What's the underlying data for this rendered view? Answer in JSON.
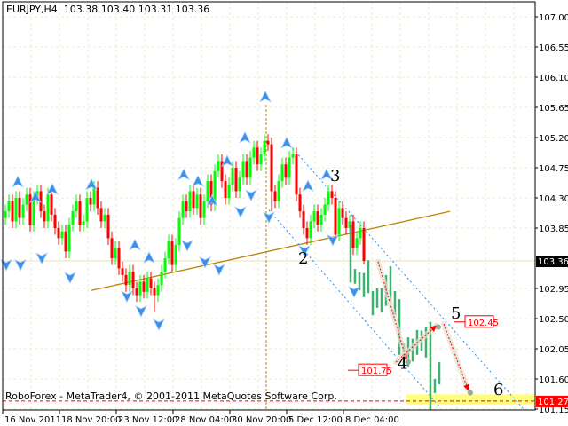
{
  "header": {
    "symbol": "EURJPY,H4",
    "open": "103.38",
    "high": "103.40",
    "low": "103.31",
    "close": "103.36"
  },
  "footer": {
    "copyright": "RoboForex - MetaTrader4, © 2001-2011 MetaQuotes Software Corp."
  },
  "colors": {
    "bull": "#00ff00",
    "bear": "#ff0000",
    "projection": "#3cb371",
    "fractal": "#3d8fe8",
    "trendline": "#b8860b",
    "channel": "#1e90ff",
    "target_zone": "#ffff66",
    "label_red": "#ff0000"
  },
  "chart_data": {
    "type": "candlestick",
    "title": "EURJPY,H4",
    "ylim": [
      101.15,
      107.0
    ],
    "grid": true,
    "y_ticks": [
      "107.00",
      "106.55",
      "106.10",
      "105.65",
      "105.20",
      "104.75",
      "104.30",
      "103.85",
      "102.95",
      "102.50",
      "102.05",
      "101.60",
      "101.15"
    ],
    "x_ticks": [
      {
        "bar": 0,
        "label": "16 Nov 2011"
      },
      {
        "bar": 16,
        "label": "18 Nov 20:00"
      },
      {
        "bar": 32,
        "label": "23 Nov 12:00"
      },
      {
        "bar": 48,
        "label": "28 Nov 04:00"
      },
      {
        "bar": 64,
        "label": "30 Nov 20:00"
      },
      {
        "bar": 80,
        "label": "5 Dec 12:00"
      },
      {
        "bar": 96,
        "label": "8 Dec 04:00"
      }
    ],
    "candles_ohlc": [
      [
        104.0,
        104.2,
        103.9,
        104.1
      ],
      [
        104.1,
        104.35,
        104.0,
        104.25
      ],
      [
        104.25,
        104.35,
        103.85,
        103.95
      ],
      [
        103.95,
        104.4,
        103.85,
        104.3
      ],
      [
        104.3,
        104.4,
        103.9,
        104.0
      ],
      [
        104.0,
        104.3,
        103.9,
        104.2
      ],
      [
        104.2,
        104.45,
        104.1,
        104.35
      ],
      [
        104.35,
        104.45,
        103.8,
        103.9
      ],
      [
        103.9,
        104.4,
        103.8,
        104.3
      ],
      [
        104.3,
        104.5,
        104.2,
        104.4
      ],
      [
        104.4,
        104.5,
        104.0,
        104.1
      ],
      [
        104.1,
        104.2,
        103.85,
        103.95
      ],
      [
        103.95,
        104.45,
        103.85,
        104.35
      ],
      [
        104.35,
        104.45,
        103.95,
        104.05
      ],
      [
        104.05,
        104.15,
        103.75,
        103.85
      ],
      [
        103.85,
        103.95,
        103.6,
        103.7
      ],
      [
        103.7,
        103.9,
        103.6,
        103.8
      ],
      [
        103.8,
        103.9,
        103.4,
        103.5
      ],
      [
        103.5,
        104.0,
        103.4,
        103.9
      ],
      [
        103.9,
        104.2,
        103.8,
        104.1
      ],
      [
        104.1,
        104.35,
        104.0,
        104.25
      ],
      [
        104.25,
        104.35,
        103.8,
        103.9
      ],
      [
        103.9,
        104.05,
        103.8,
        103.95
      ],
      [
        103.95,
        104.4,
        103.85,
        104.3
      ],
      [
        104.3,
        104.4,
        104.1,
        104.2
      ],
      [
        104.2,
        104.55,
        104.1,
        104.45
      ],
      [
        104.45,
        104.55,
        104.05,
        104.15
      ],
      [
        104.15,
        104.25,
        103.85,
        103.95
      ],
      [
        103.95,
        104.15,
        103.85,
        104.05
      ],
      [
        104.05,
        104.15,
        103.6,
        103.7
      ],
      [
        103.7,
        103.8,
        103.3,
        103.4
      ],
      [
        103.4,
        103.65,
        103.3,
        103.55
      ],
      [
        103.55,
        103.65,
        103.15,
        103.25
      ],
      [
        103.25,
        103.35,
        103.05,
        103.15
      ],
      [
        103.15,
        103.25,
        102.9,
        103.0
      ],
      [
        103.0,
        103.3,
        102.9,
        103.2
      ],
      [
        103.2,
        103.3,
        102.85,
        102.95
      ],
      [
        102.95,
        103.05,
        102.75,
        102.85
      ],
      [
        102.85,
        103.15,
        102.75,
        103.05
      ],
      [
        103.05,
        103.15,
        102.8,
        102.9
      ],
      [
        102.9,
        103.2,
        102.8,
        103.1
      ],
      [
        103.1,
        103.2,
        102.85,
        102.95
      ],
      [
        102.95,
        103.05,
        102.6,
        102.85
      ],
      [
        102.85,
        103.1,
        102.75,
        103.0
      ],
      [
        103.0,
        103.3,
        102.9,
        103.2
      ],
      [
        103.2,
        103.5,
        103.1,
        103.4
      ],
      [
        103.4,
        103.75,
        103.3,
        103.65
      ],
      [
        103.65,
        103.75,
        103.2,
        103.3
      ],
      [
        103.3,
        103.7,
        103.2,
        103.6
      ],
      [
        103.6,
        104.1,
        103.5,
        104.0
      ],
      [
        104.0,
        104.35,
        103.9,
        104.25
      ],
      [
        104.25,
        104.35,
        104.0,
        104.1
      ],
      [
        104.1,
        104.5,
        104.0,
        104.4
      ],
      [
        104.4,
        104.5,
        104.05,
        104.15
      ],
      [
        104.15,
        104.45,
        104.05,
        104.35
      ],
      [
        104.35,
        104.45,
        103.9,
        104.0
      ],
      [
        104.0,
        104.35,
        103.9,
        104.25
      ],
      [
        104.25,
        104.65,
        104.15,
        104.55
      ],
      [
        104.55,
        104.65,
        104.1,
        104.2
      ],
      [
        104.2,
        104.8,
        104.1,
        104.7
      ],
      [
        104.7,
        104.95,
        104.6,
        104.85
      ],
      [
        104.85,
        104.95,
        104.45,
        104.55
      ],
      [
        104.55,
        104.65,
        104.2,
        104.3
      ],
      [
        104.3,
        104.6,
        104.2,
        104.5
      ],
      [
        104.5,
        104.85,
        104.4,
        104.75
      ],
      [
        104.75,
        104.85,
        104.3,
        104.4
      ],
      [
        104.4,
        104.7,
        104.3,
        104.6
      ],
      [
        104.6,
        104.95,
        104.5,
        104.85
      ],
      [
        104.85,
        104.95,
        104.5,
        104.6
      ],
      [
        104.6,
        105.0,
        104.5,
        104.9
      ],
      [
        104.9,
        105.15,
        104.8,
        105.05
      ],
      [
        105.05,
        105.15,
        104.7,
        104.8
      ],
      [
        104.8,
        105.05,
        104.7,
        104.95
      ],
      [
        104.95,
        105.25,
        104.85,
        105.15
      ],
      [
        105.15,
        105.25,
        105.0,
        105.1
      ],
      [
        105.1,
        105.2,
        104.1,
        104.4
      ],
      [
        104.4,
        104.5,
        104.15,
        104.25
      ],
      [
        104.25,
        104.65,
        104.15,
        104.55
      ],
      [
        104.55,
        104.9,
        104.45,
        104.8
      ],
      [
        104.8,
        104.9,
        104.5,
        104.6
      ],
      [
        104.6,
        105.0,
        104.5,
        104.9
      ],
      [
        104.9,
        105.05,
        104.8,
        104.95
      ],
      [
        104.95,
        105.05,
        104.25,
        104.35
      ],
      [
        104.35,
        104.45,
        104.0,
        104.1
      ],
      [
        104.1,
        104.2,
        103.75,
        103.85
      ],
      [
        103.85,
        103.95,
        103.6,
        103.7
      ],
      [
        103.7,
        104.05,
        103.6,
        103.95
      ],
      [
        103.95,
        104.2,
        103.85,
        104.1
      ],
      [
        104.1,
        104.2,
        103.8,
        103.9
      ],
      [
        103.9,
        104.15,
        103.8,
        104.05
      ],
      [
        104.05,
        104.3,
        103.95,
        104.2
      ],
      [
        104.2,
        104.5,
        104.1,
        104.4
      ],
      [
        104.4,
        104.5,
        104.2,
        104.3
      ],
      [
        104.3,
        104.4,
        103.65,
        103.75
      ],
      [
        103.75,
        104.25,
        103.65,
        104.15
      ],
      [
        104.15,
        104.25,
        103.9,
        104.0
      ],
      [
        104.0,
        104.1,
        103.75,
        103.85
      ],
      [
        103.85,
        104.05,
        103.75,
        103.95
      ],
      [
        103.95,
        104.05,
        103.45,
        103.55
      ],
      [
        103.55,
        103.8,
        103.45,
        103.7
      ],
      [
        103.7,
        103.95,
        103.6,
        103.85
      ],
      [
        103.85,
        103.95,
        103.31,
        103.36
      ]
    ],
    "projection_bars_high_low": [
      [
        103.9,
        103.04
      ],
      [
        103.24,
        103.02
      ],
      [
        103.19,
        102.92
      ],
      [
        103.18,
        102.82
      ],
      [
        103.37,
        102.88
      ],
      [
        102.91,
        102.55
      ],
      [
        102.95,
        102.66
      ],
      [
        102.95,
        102.59
      ],
      [
        103.15,
        102.69
      ],
      [
        103.28,
        102.75
      ],
      [
        102.91,
        102.55
      ],
      [
        102.79,
        101.96
      ],
      [
        102.13,
        101.83
      ],
      [
        102.22,
        101.79
      ],
      [
        102.2,
        101.86
      ],
      [
        102.33,
        101.96
      ],
      [
        102.32,
        102.02
      ],
      [
        102.38,
        101.92
      ],
      [
        102.45,
        101.14
      ],
      [
        101.6,
        101.39
      ],
      [
        101.85,
        101.52
      ]
    ],
    "fractals_up": [
      [
        3.5,
        104.53
      ],
      [
        8.5,
        104.3
      ],
      [
        13.25,
        104.42
      ],
      [
        24.25,
        104.49
      ],
      [
        36.5,
        103.59
      ],
      [
        40.5,
        103.4
      ],
      [
        50.25,
        104.64
      ],
      [
        54.25,
        104.54
      ],
      [
        58.25,
        104.25
      ],
      [
        62.5,
        104.84
      ],
      [
        67.5,
        105.19
      ],
      [
        73.25,
        105.8
      ],
      [
        79.25,
        105.11
      ],
      [
        85.25,
        104.47
      ],
      [
        90.5,
        104.64
      ]
    ],
    "fractals_down": [
      [
        0.25,
        103.31
      ],
      [
        4.25,
        103.31
      ],
      [
        10.25,
        103.41
      ],
      [
        18.25,
        103.12
      ],
      [
        34.25,
        102.84
      ],
      [
        38.25,
        102.62
      ],
      [
        43.25,
        102.42
      ],
      [
        51.25,
        103.6
      ],
      [
        56.25,
        103.35
      ],
      [
        60.25,
        103.24
      ],
      [
        66.25,
        104.1
      ],
      [
        69.25,
        104.35
      ],
      [
        74.25,
        104.02
      ],
      [
        84.25,
        103.52
      ],
      [
        92.25,
        103.68
      ],
      [
        98.25,
        102.91
      ]
    ],
    "trendline": [
      [
        24.25,
        102.92
      ],
      [
        125.25,
        104.1
      ]
    ],
    "channel_upper": [
      [
        79.25,
        105.14
      ],
      [
        146,
        101.15
      ]
    ],
    "channel_lower": [
      [
        74.25,
        104.12
      ],
      [
        122.25,
        101.19
      ]
    ],
    "vertical_marker_bar": 73.5,
    "vertical_marker_top": 105.69,
    "wave_labels": [
      {
        "label": "2",
        "bar": 82.5,
        "price": 103.32
      },
      {
        "label": "3",
        "bar": 91.5,
        "price": 104.55
      },
      {
        "label": "4",
        "bar": 110.5,
        "price": 101.75
      },
      {
        "label": "5",
        "bar": 125.5,
        "price": 102.5
      },
      {
        "label": "6",
        "bar": 137.5,
        "price": 101.36
      }
    ],
    "forecast_arrows": [
      [
        [
          105,
          103.35
        ],
        [
          113,
          101.88
        ]
      ],
      [
        [
          110,
          101.85
        ],
        [
          121.5,
          102.4
        ]
      ],
      [
        [
          123.5,
          102.42
        ],
        [
          130.5,
          101.42
        ]
      ]
    ],
    "price_labels": [
      {
        "text": "102.45",
        "bar": 129.5,
        "price": 102.45
      },
      {
        "text": "101.75",
        "bar": 99.5,
        "price": 101.73
      }
    ],
    "target_zone": [
      101.22,
      101.37
    ],
    "target_zone_from_bar": 113,
    "target_level": "101.27",
    "current_price": "103.36"
  }
}
